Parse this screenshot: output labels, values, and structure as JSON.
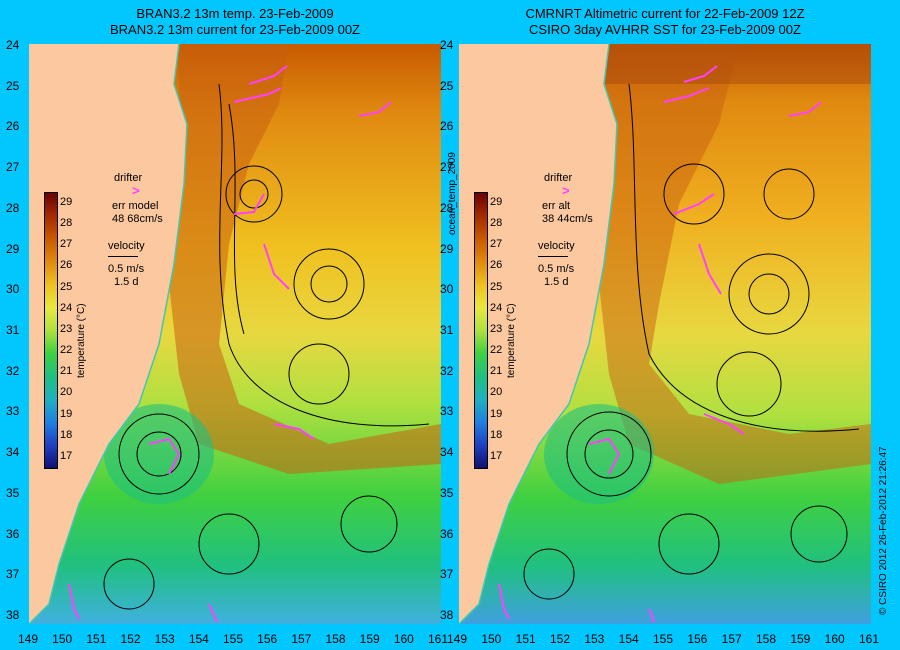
{
  "left_panel": {
    "title_line1": "BRAN3.2 13m temp. 23-Feb-2009",
    "title_line2": "BRAN3.2 13m current for 23-Feb-2009 00Z",
    "legend_drifter": "drifter",
    "legend_err_label": "err model",
    "legend_err_value": "48 68cm/s",
    "legend_velocity": "velocity",
    "legend_speed": "0.5 m/s",
    "legend_days": "1.5 d"
  },
  "right_panel": {
    "title_line1": "CMRNRT Altimetric current for 22-Feb-2009 12Z",
    "title_line2": "CSIRO 3day AVHRR SST for 23-Feb-2009 00Z",
    "legend_drifter": "drifter",
    "legend_err_label": "err alt",
    "legend_err_value": "38 44cm/s",
    "legend_velocity": "velocity",
    "legend_speed": "0.5 m/s",
    "legend_days": "1.5 d"
  },
  "colorbar": {
    "ticks": [
      "29",
      "28",
      "27",
      "26",
      "25",
      "24",
      "23",
      "22",
      "21",
      "20",
      "19",
      "18",
      "17"
    ],
    "label": "temperature (°C)",
    "colors": [
      "#6a0000",
      "#a52a00",
      "#c85a00",
      "#e08a10",
      "#f0c020",
      "#e8e840",
      "#b0e040",
      "#40d040",
      "#20c080",
      "#20b0c0",
      "#2080e0",
      "#2040c0",
      "#101070"
    ]
  },
  "latitude_ticks": [
    "24",
    "25",
    "26",
    "27",
    "28",
    "29",
    "30",
    "31",
    "32",
    "33",
    "34",
    "35",
    "36",
    "37",
    "38"
  ],
  "longitude_ticks": [
    "149",
    "150",
    "151",
    "152",
    "153",
    "154",
    "155",
    "156",
    "157",
    "158",
    "159",
    "160",
    "161"
  ],
  "side_label_center": "ocean_temp_2009",
  "side_label_right": "© CSIRO 2012  26-Feb-2012 21:26:47",
  "colors": {
    "background": "#00c8ff",
    "land": "#fcc8a0",
    "coast": "#40c8b0",
    "drifter": "#ff40ff",
    "vector": "#000000"
  }
}
